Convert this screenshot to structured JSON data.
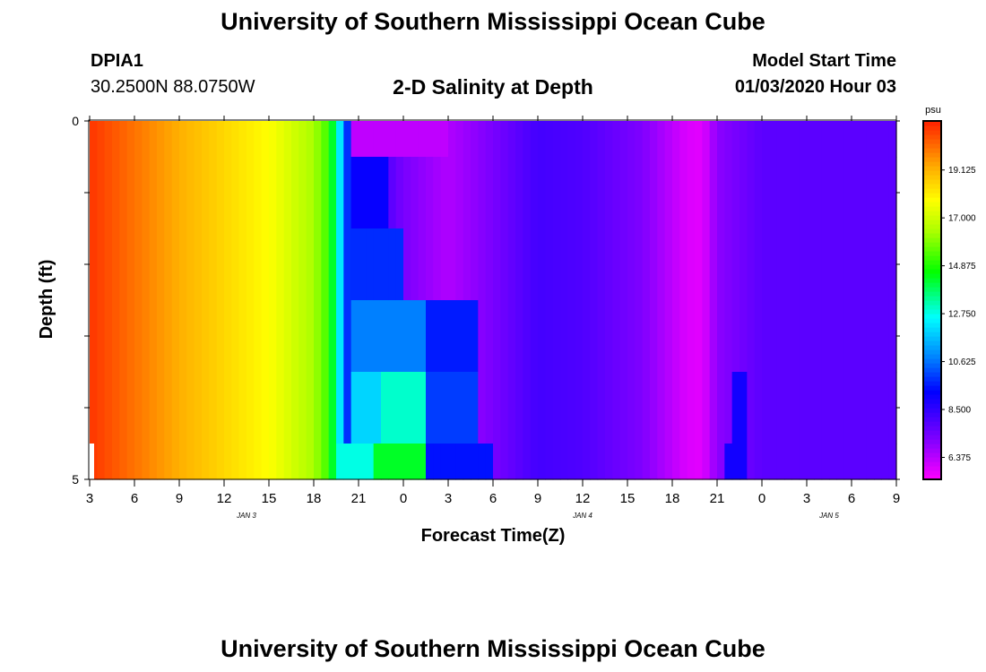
{
  "header": {
    "title": "University of Southern Mississippi Ocean Cube",
    "station_id": "DPIA1",
    "coordinates": "30.2500N 88.0750W",
    "model_start_label": "Model Start Time",
    "model_start_value": "01/03/2020 Hour 03"
  },
  "footer": {
    "title": "University of Southern Mississippi Ocean Cube"
  },
  "chart_data": {
    "type": "heatmap",
    "title": "2-D Salinity at Depth",
    "xlabel": "Forecast Time(Z)",
    "ylabel": "Depth (ft)",
    "units": "psu",
    "x_hours_range": [
      0,
      54
    ],
    "x_tick_labels": [
      "3",
      "6",
      "9",
      "12",
      "15",
      "18",
      "21",
      "0",
      "3",
      "6",
      "9",
      "12",
      "15",
      "18",
      "21",
      "0",
      "3",
      "6",
      "9"
    ],
    "date_labels": [
      {
        "label": "JAN 3",
        "hour": 10.5
      },
      {
        "label": "JAN 4",
        "hour": 33
      },
      {
        "label": "JAN 5",
        "hour": 49.5
      }
    ],
    "y_range": [
      0,
      5
    ],
    "y_tick_labels": [
      "0",
      "5"
    ],
    "y_minor_ticks": [
      1,
      2,
      3,
      4
    ],
    "depth_layers": [
      0.5,
      1.5,
      2.5,
      3.5,
      4.5
    ],
    "colorbar": {
      "ticks": [
        19.125,
        17.0,
        14.875,
        12.75,
        10.625,
        8.5,
        6.375
      ],
      "tick_labels": [
        "19.125",
        "17.000",
        "14.875",
        "12.750",
        "10.625",
        "8.500",
        "6.375"
      ],
      "min": 5.4,
      "max": 21.3,
      "color_stops": [
        {
          "v": 5.4,
          "c": "#ff00ff"
        },
        {
          "v": 7.2,
          "c": "#7f00ff"
        },
        {
          "v": 9.3,
          "c": "#0000ff"
        },
        {
          "v": 10.8,
          "c": "#0080ff"
        },
        {
          "v": 12.6,
          "c": "#00ffff"
        },
        {
          "v": 14.6,
          "c": "#00ff00"
        },
        {
          "v": 16.4,
          "c": "#aaff00"
        },
        {
          "v": 17.8,
          "c": "#ffff00"
        },
        {
          "v": 19.3,
          "c": "#ffaa00"
        },
        {
          "v": 21.3,
          "c": "#ff2000"
        }
      ]
    },
    "profile_keys": [
      {
        "t": 0,
        "v": 21.0
      },
      {
        "t": 6,
        "v": 19.2
      },
      {
        "t": 12,
        "v": 17.8
      },
      {
        "t": 15,
        "v": 16.4
      },
      {
        "t": 16,
        "v": 15.2
      },
      {
        "t": 16.6,
        "v": 13.0
      },
      {
        "t": 17.3,
        "v": 9.6
      },
      {
        "t": 21,
        "v": 7.3
      },
      {
        "t": 24,
        "v": 6.5
      },
      {
        "t": 27,
        "v": 7.3
      },
      {
        "t": 30,
        "v": 8.2
      },
      {
        "t": 33,
        "v": 8.0
      },
      {
        "t": 37,
        "v": 7.2
      },
      {
        "t": 40,
        "v": 5.9
      },
      {
        "t": 41,
        "v": 5.8
      },
      {
        "t": 42,
        "v": 7.0
      },
      {
        "t": 45,
        "v": 7.8
      },
      {
        "t": 54,
        "v": 7.8
      }
    ],
    "layer_extra": [
      {
        "layer": 0,
        "ranges": [
          {
            "t0": 17.3,
            "t1": 24,
            "v": 6.3
          }
        ]
      },
      {
        "layer": 1,
        "ranges": [
          {
            "t0": 17.3,
            "t1": 20,
            "v": 9.2
          }
        ]
      },
      {
        "layer": 2,
        "ranges": [
          {
            "t0": 17.3,
            "t1": 21,
            "v": 9.8
          }
        ]
      },
      {
        "layer": 3,
        "ranges": [
          {
            "t0": 17.3,
            "t1": 22.5,
            "v": 10.8
          },
          {
            "t0": 22.5,
            "t1": 26,
            "v": 9.6
          }
        ]
      },
      {
        "layer": 4,
        "ranges": [
          {
            "t0": 17.3,
            "t1": 19.5,
            "v": 12.0
          },
          {
            "t0": 19.5,
            "t1": 22.5,
            "v": 13.0
          },
          {
            "t0": 22.5,
            "t1": 26,
            "v": 10.0
          },
          {
            "t0": 43,
            "t1": 44,
            "v": 9.0
          }
        ]
      },
      {
        "layer": 5,
        "ranges": [
          {
            "t0": 16.6,
            "t1": 19,
            "v": 12.8
          },
          {
            "t0": 19,
            "t1": 22.5,
            "v": 14.3
          },
          {
            "t0": 22.5,
            "t1": 27,
            "v": 9.5
          },
          {
            "t0": 42.5,
            "t1": 44,
            "v": 9.0
          }
        ]
      }
    ]
  }
}
